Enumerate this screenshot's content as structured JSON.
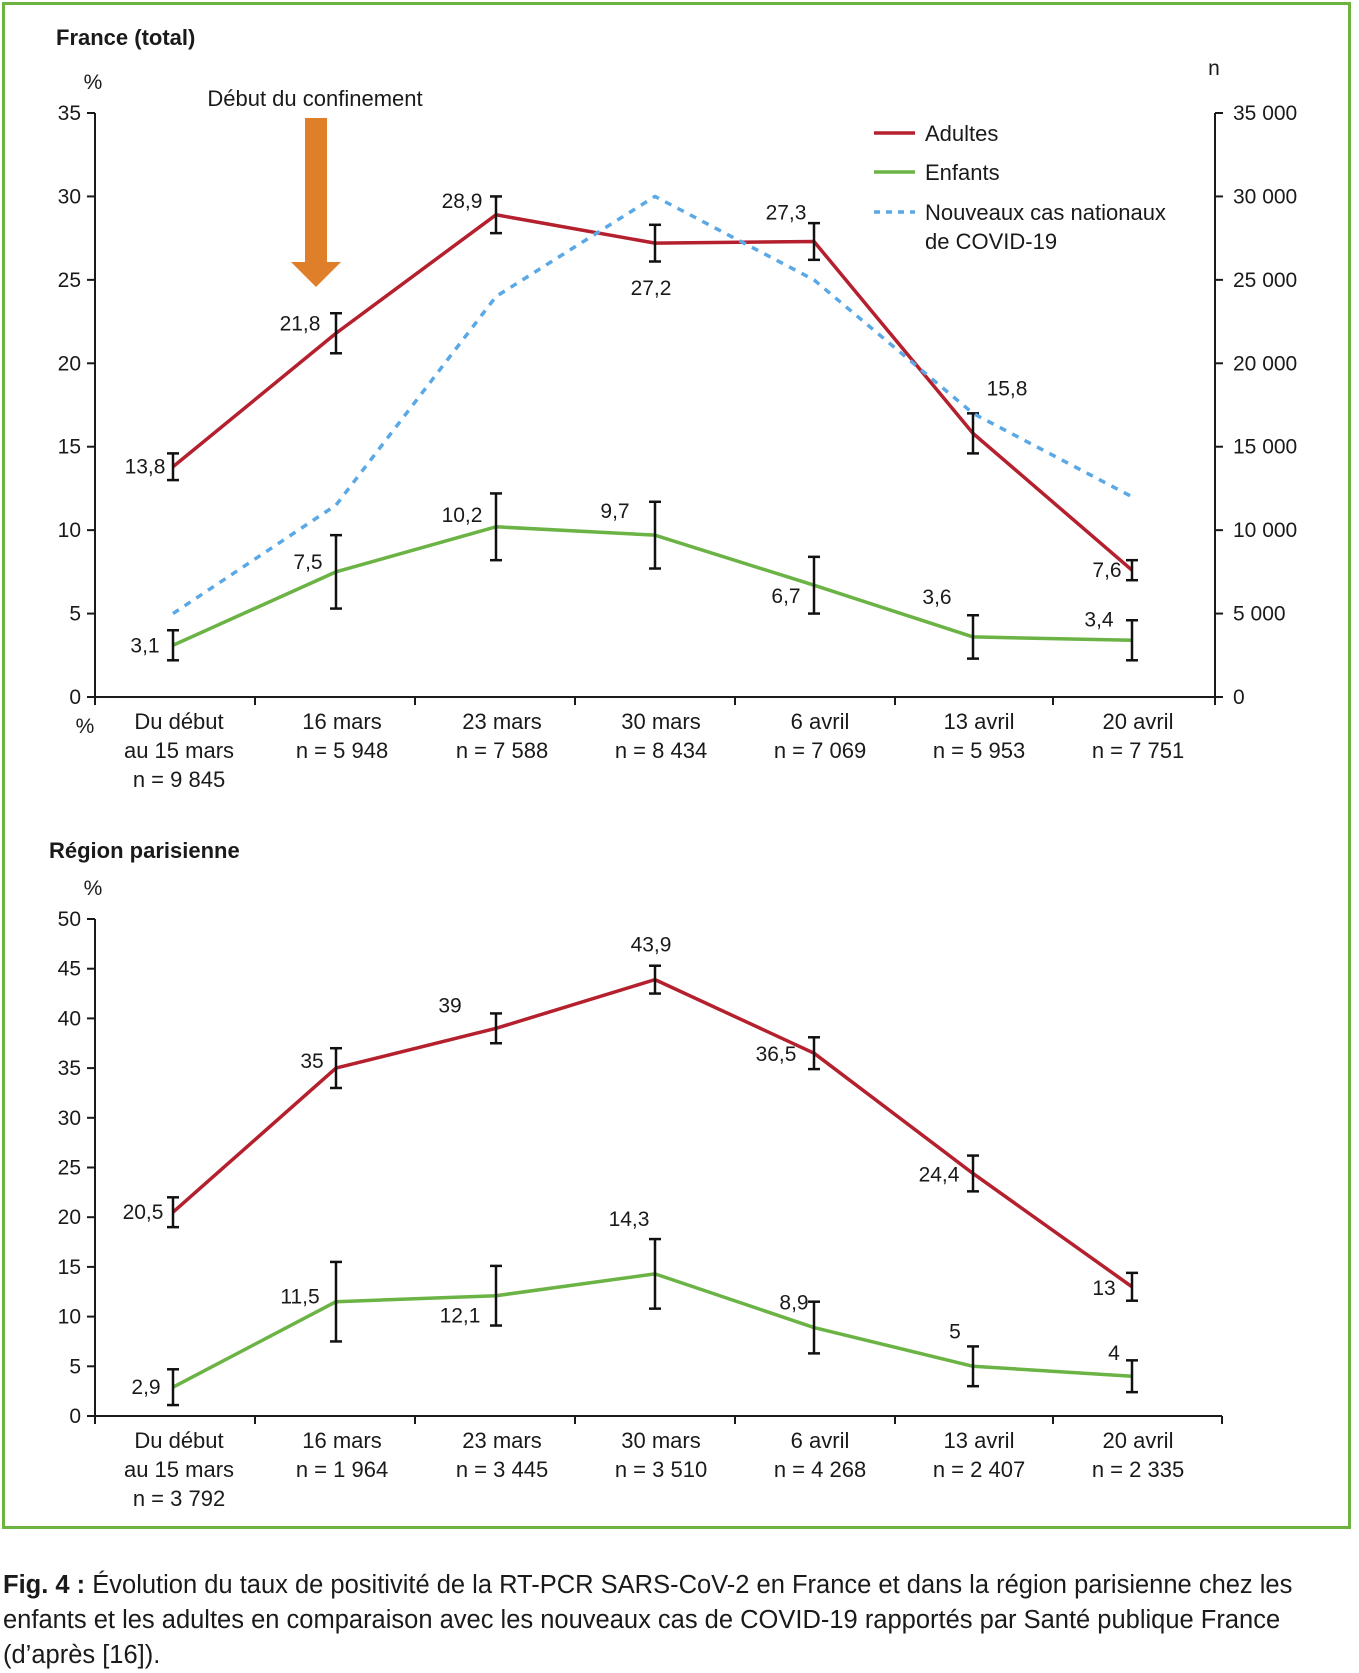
{
  "colors": {
    "adultes": "#b5202e",
    "enfants": "#6ab344",
    "nouveaux": "#5aa9e6",
    "arrow": "#e07f2a",
    "frame": "#6cb33f",
    "axis": "#1a1a1a"
  },
  "chart_data": [
    {
      "type": "line",
      "title": "France (total)",
      "ylabel": "%",
      "ylabel_right": "n",
      "xaxis_unit_label": "%",
      "ylim": [
        0,
        35
      ],
      "yticks": [
        "0",
        "5",
        "10",
        "15",
        "20",
        "25",
        "30",
        "35"
      ],
      "ylim_right": [
        0,
        35000
      ],
      "yticks_right": [
        "0",
        "5 000",
        "10 000",
        "15 000",
        "20 000",
        "25 000",
        "30 000",
        "35 000"
      ],
      "categories": [
        [
          "Du début",
          "au 15 mars",
          "n = 9 845"
        ],
        [
          "16 mars",
          "n = 5 948"
        ],
        [
          "23 mars",
          "n = 7 588"
        ],
        [
          "30 mars",
          "n = 8 434"
        ],
        [
          "6 avril",
          "n = 7 069"
        ],
        [
          "13 avril",
          "n = 5 953"
        ],
        [
          "20 avril",
          "n = 7 751"
        ]
      ],
      "annotation": "Début du confinement",
      "annotation_category_index": 1,
      "legend_position": "top-right",
      "series": [
        {
          "name": "Adultes",
          "axis": "left",
          "style": "solid",
          "values": [
            13.8,
            21.8,
            28.9,
            27.2,
            27.3,
            15.8,
            7.6
          ],
          "labels": [
            "13,8",
            "21,8",
            "28,9",
            "27,2",
            "27,3",
            "15,8",
            "7,6"
          ],
          "error": [
            0.8,
            1.2,
            1.1,
            1.1,
            1.1,
            1.2,
            0.6
          ]
        },
        {
          "name": "Enfants",
          "axis": "left",
          "style": "solid",
          "values": [
            3.1,
            7.5,
            10.2,
            9.7,
            6.7,
            3.6,
            3.4
          ],
          "labels": [
            "3,1",
            "7,5",
            "10,2",
            "9,7",
            "6,7",
            "3,6",
            "3,4"
          ],
          "error": [
            0.9,
            2.2,
            2.0,
            2.0,
            1.7,
            1.3,
            1.2
          ]
        },
        {
          "name": "Nouveaux cas nationaux de COVID-19",
          "name_lines": [
            "Nouveaux cas nationaux",
            "de COVID-19"
          ],
          "axis": "right",
          "style": "dotted",
          "values": [
            5000,
            11500,
            24000,
            30000,
            25000,
            17000,
            12000
          ]
        }
      ]
    },
    {
      "type": "line",
      "title": "Région parisienne",
      "ylabel": "%",
      "ylim": [
        0,
        50
      ],
      "yticks": [
        "0",
        "5",
        "10",
        "15",
        "20",
        "25",
        "30",
        "35",
        "40",
        "45",
        "50"
      ],
      "categories": [
        [
          "Du début",
          "au 15 mars",
          "n = 3 792"
        ],
        [
          "16 mars",
          "n = 1 964"
        ],
        [
          "23 mars",
          "n = 3 445"
        ],
        [
          "30 mars",
          "n = 3 510"
        ],
        [
          "6 avril",
          "n = 4 268"
        ],
        [
          "13 avril",
          "n = 2 407"
        ],
        [
          "20 avril",
          "n = 2 335"
        ]
      ],
      "series": [
        {
          "name": "Adultes",
          "style": "solid",
          "values": [
            20.5,
            35,
            39,
            43.9,
            36.5,
            24.4,
            13
          ],
          "labels": [
            "20,5",
            "35",
            "39",
            "43,9",
            "36,5",
            "24,4",
            "13"
          ],
          "error": [
            1.5,
            2.0,
            1.5,
            1.4,
            1.6,
            1.8,
            1.4
          ]
        },
        {
          "name": "Enfants",
          "style": "solid",
          "values": [
            2.9,
            11.5,
            12.1,
            14.3,
            8.9,
            5,
            4
          ],
          "labels": [
            "2,9",
            "11,5",
            "12,1",
            "14,3",
            "8,9",
            "5",
            "4"
          ],
          "error": [
            1.8,
            4.0,
            3.0,
            3.5,
            2.6,
            2.0,
            1.6
          ]
        }
      ]
    }
  ],
  "caption": {
    "label": "Fig. 4 :",
    "text": "Évolution du taux de positivité de la RT-PCR SARS-CoV-2 en France et dans la région parisienne chez les enfants et les adultes en comparaison avec les nouveaux cas de COVID-19 rapportés par Santé publique France (d’après [16])."
  }
}
